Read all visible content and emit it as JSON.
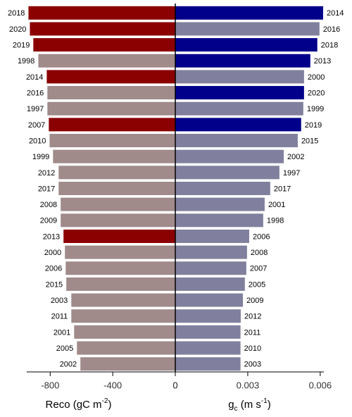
{
  "chart_data": [
    {
      "type": "hbar",
      "side": "left",
      "categories": [
        "2018",
        "2020",
        "2019",
        "1998",
        "2014",
        "2016",
        "1997",
        "2007",
        "2010",
        "1999",
        "2012",
        "2017",
        "2008",
        "2009",
        "2013",
        "2000",
        "2006",
        "2015",
        "2003",
        "2011",
        "2001",
        "2005",
        "2002"
      ],
      "values": [
        -939,
        -930,
        -908,
        -876,
        -822,
        -818,
        -818,
        -809,
        -804,
        -782,
        -746,
        -746,
        -733,
        -733,
        -715,
        -706,
        -701,
        -697,
        -665,
        -665,
        -647,
        -629,
        -607
      ],
      "colors": [
        "#8b0000",
        "#8b0000",
        "#8b0000",
        "#a08a8a",
        "#8b0000",
        "#a08a8a",
        "#a08a8a",
        "#8b0000",
        "#a08a8a",
        "#a08a8a",
        "#a08a8a",
        "#a08a8a",
        "#a08a8a",
        "#a08a8a",
        "#8b0000",
        "#a08a8a",
        "#a08a8a",
        "#a08a8a",
        "#a08a8a",
        "#a08a8a",
        "#a08a8a",
        "#a08a8a",
        "#a08a8a"
      ],
      "xlim": [
        -950,
        0
      ],
      "xticks": [
        -800,
        -400,
        0
      ],
      "xlabel": [
        {
          "text": "Reco (gC m"
        },
        {
          "text": "-2",
          "shift": "super"
        },
        {
          "text": ")"
        }
      ]
    },
    {
      "type": "hbar",
      "side": "right",
      "categories": [
        "2014",
        "2016",
        "2018",
        "2013",
        "2000",
        "2020",
        "1999",
        "2019",
        "2015",
        "2002",
        "1997",
        "2017",
        "2001",
        "1998",
        "2006",
        "2008",
        "2007",
        "2005",
        "2009",
        "2012",
        "2011",
        "2010",
        "2003"
      ],
      "values": [
        0.00612,
        0.00597,
        0.00588,
        0.00559,
        0.00533,
        0.00533,
        0.0053,
        0.00521,
        0.00507,
        0.00449,
        0.00431,
        0.00393,
        0.0037,
        0.00364,
        0.00306,
        0.00297,
        0.00294,
        0.00288,
        0.0028,
        0.00271,
        0.0027,
        0.0027,
        0.0027
      ],
      "colors": [
        "#00008b",
        "#80809e",
        "#00008b",
        "#00008b",
        "#80809e",
        "#00008b",
        "#80809e",
        "#00008b",
        "#80809e",
        "#80809e",
        "#80809e",
        "#80809e",
        "#80809e",
        "#80809e",
        "#80809e",
        "#80809e",
        "#80809e",
        "#80809e",
        "#80809e",
        "#80809e",
        "#80809e",
        "#80809e",
        "#80809e"
      ],
      "xlim": [
        0,
        0.00615
      ],
      "xticks": [
        0,
        0.003,
        0.006
      ],
      "xlabel": [
        {
          "text": "g"
        },
        {
          "text": "c",
          "shift": "sub"
        },
        {
          "text": "  (m s"
        },
        {
          "text": "-1",
          "shift": "super"
        },
        {
          "text": ")"
        }
      ]
    }
  ]
}
